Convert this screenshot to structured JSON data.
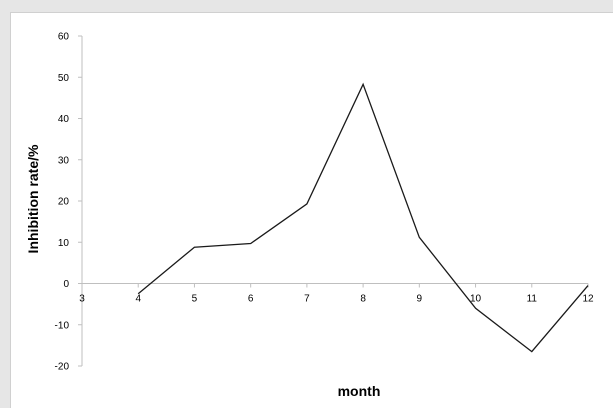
{
  "chart_data": {
    "type": "line",
    "xlabel": "month",
    "ylabel": "Inhibition rate/%",
    "x": [
      4,
      5,
      6,
      7,
      8,
      9,
      10,
      11,
      12
    ],
    "series": [
      {
        "values": [
          -2.5,
          8.8,
          9.7,
          19.3,
          48.3,
          11.2,
          -6.0,
          -16.5,
          -0.5
        ]
      }
    ],
    "xlim": [
      3,
      12
    ],
    "ylim": [
      -20,
      60
    ],
    "x_ticks": [
      3,
      4,
      5,
      6,
      7,
      8,
      9,
      10,
      11,
      12
    ],
    "y_ticks": [
      -20,
      -10,
      0,
      10,
      20,
      30,
      40,
      50,
      60
    ],
    "grid": false,
    "legend": "none",
    "line_color": "#1a1a1a",
    "axis_color": "#bfbfbf"
  }
}
